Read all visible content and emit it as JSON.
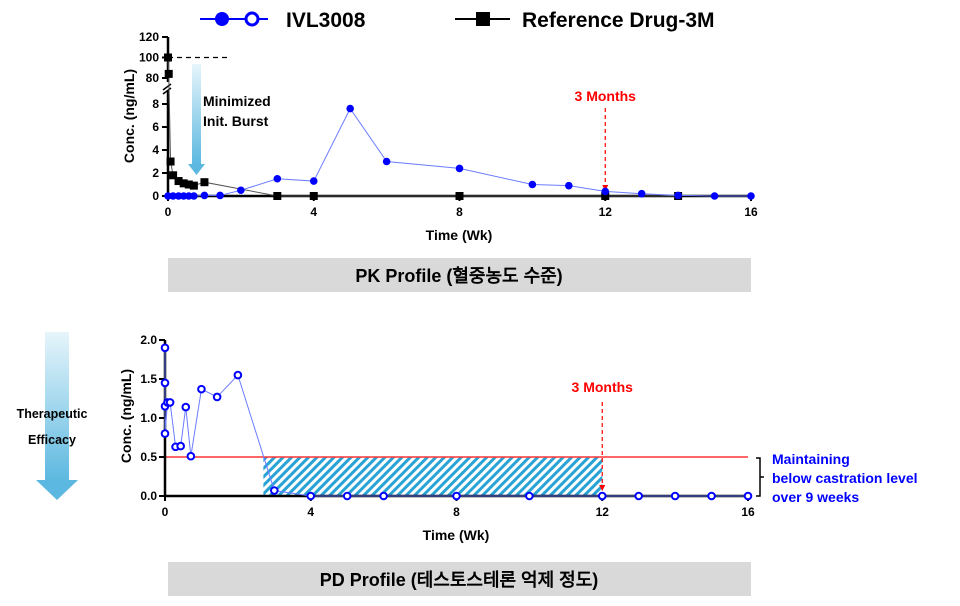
{
  "colors": {
    "ivl": "#0000ff",
    "ref": "#000000",
    "annot": "#ff0000",
    "threshold": "#ff3333",
    "hatch": "#29a3d6",
    "note": "#0000ff",
    "banner": "#d9d9d9"
  },
  "legend": {
    "ivl_label": "IVL3008",
    "ref_label": "Reference Drug-3M"
  },
  "chart_data": [
    {
      "type": "line",
      "banner": "PK Profile (혈중농도 수준)",
      "xlabel": "Time (Wk)",
      "ylabel": "Conc. (ng/mL)",
      "xlim": [
        0,
        16
      ],
      "xticks": [
        "0",
        "4",
        "8",
        "12",
        "16"
      ],
      "ylim_lower": [
        0,
        8
      ],
      "yticks_lower": [
        "0",
        "2",
        "4",
        "6",
        "8"
      ],
      "ylim_upper": [
        80,
        120
      ],
      "yticks_upper": [
        "80",
        "100",
        "120"
      ],
      "y_axis_break": true,
      "series": [
        {
          "name": "IVL3008",
          "marker": "filled-circle",
          "x": [
            0,
            0.14,
            0.29,
            0.43,
            0.57,
            0.71,
            1,
            1.43,
            2,
            3,
            4,
            5,
            6,
            8,
            10,
            11,
            12,
            13,
            14,
            15,
            16
          ],
          "y": [
            0,
            0,
            0,
            0,
            0,
            0,
            0.05,
            0.05,
            0.5,
            1.5,
            1.3,
            7.6,
            3.0,
            2.4,
            1.0,
            0.9,
            0.4,
            0.2,
            0.05,
            0,
            0
          ]
        },
        {
          "name": "Reference Drug-3M",
          "marker": "filled-square",
          "x": [
            0,
            0.02,
            0.07,
            0.14,
            0.29,
            0.43,
            0.57,
            0.71,
            1,
            3,
            4,
            8,
            12,
            14
          ],
          "y": [
            100,
            84,
            3,
            1.8,
            1.3,
            1.1,
            1.0,
            0.9,
            1.2,
            0,
            0,
            0,
            0,
            0
          ]
        }
      ],
      "annotations": {
        "burst_line1": "Minimized",
        "burst_line2": "Init. Burst",
        "months": "3 Months",
        "months_x": 12,
        "reference_level": 100
      }
    },
    {
      "type": "line",
      "banner": "PD Profile (테스토스테론 억제 정도)",
      "xlabel": "Time (Wk)",
      "ylabel": "Conc. (ng/mL)",
      "xlim": [
        0,
        16
      ],
      "xticks": [
        "0",
        "4",
        "8",
        "12",
        "16"
      ],
      "ylim": [
        0,
        2.0
      ],
      "yticks": [
        "0.0",
        "0.5",
        "1.0",
        "1.5",
        "2.0"
      ],
      "series": [
        {
          "name": "IVL3008",
          "marker": "open-circle",
          "x": [
            0,
            0,
            0,
            0,
            0.07,
            0.14,
            0.29,
            0.43,
            0.57,
            0.71,
            1,
            1.43,
            2,
            3,
            4,
            5,
            6,
            8,
            10,
            12,
            13,
            14,
            15,
            16
          ],
          "y": [
            1.9,
            1.45,
            1.15,
            0.8,
            1.2,
            1.2,
            0.63,
            0.64,
            1.14,
            0.51,
            1.37,
            1.27,
            1.55,
            0.07,
            0,
            0,
            0,
            0,
            0,
            0,
            0,
            0,
            0,
            0
          ]
        }
      ],
      "threshold": 0.5,
      "hatched_region": {
        "x": [
          2.7,
          12
        ],
        "y": [
          0,
          0.5
        ]
      },
      "annotations": {
        "months": "3 Months",
        "months_x": 12,
        "note_line1": "Maintaining",
        "note_line2": "below castration level",
        "note_line3": "over 9 weeks",
        "side_label_line1": "Therapeutic",
        "side_label_line2": "Efficacy"
      }
    }
  ]
}
